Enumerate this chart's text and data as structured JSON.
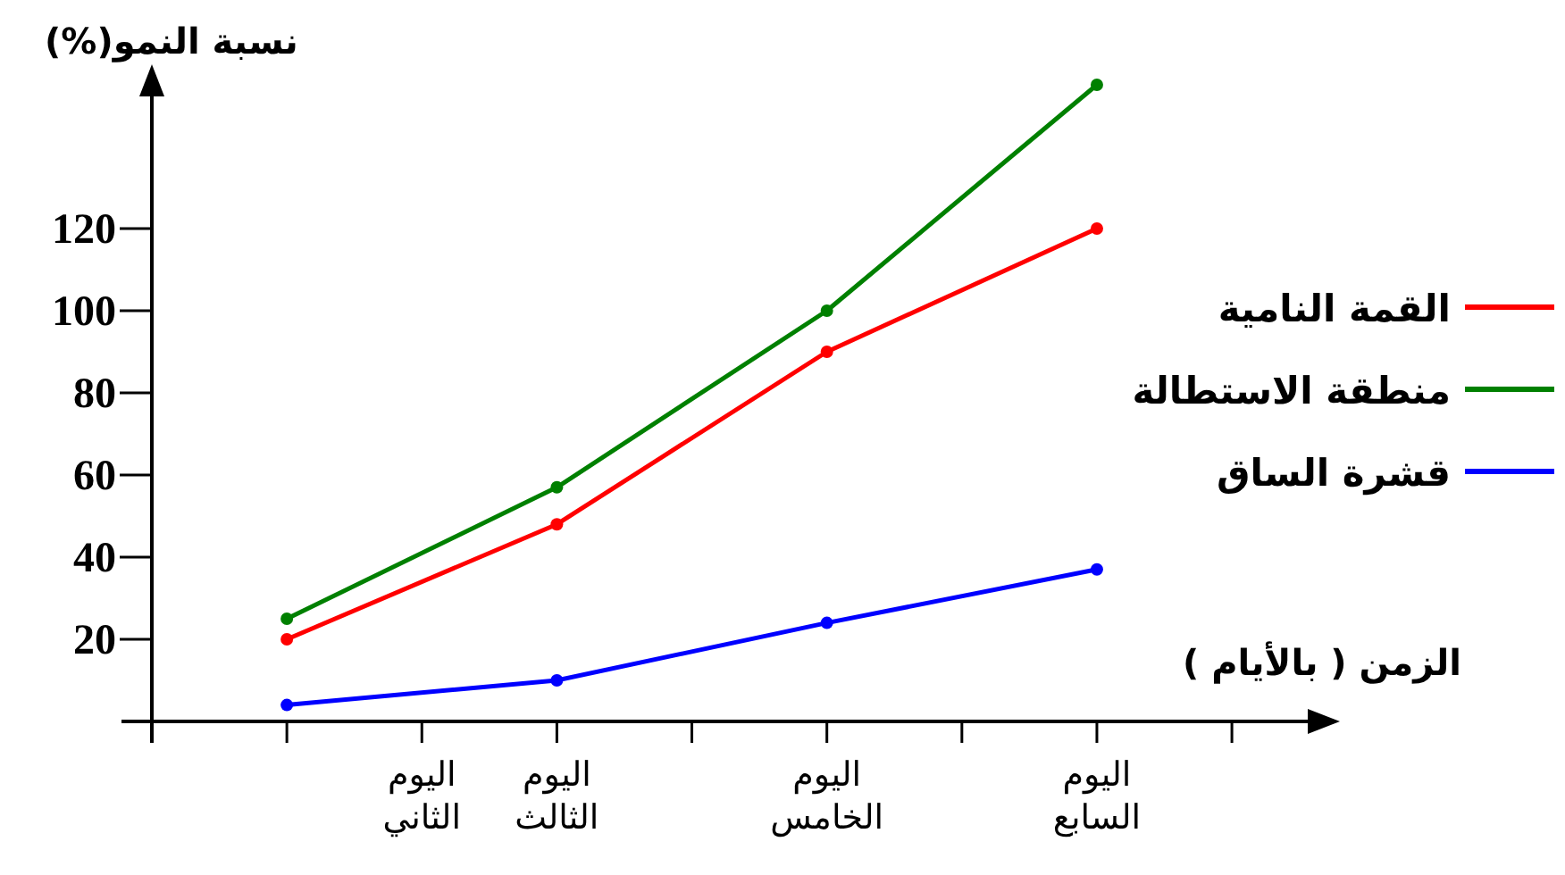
{
  "chart_data": {
    "type": "line",
    "ylabel": "نسبة النمو(%)",
    "xlabel": "الزمن ( بالأيام )",
    "categories": [
      null,
      null,
      "اليوم الثاني",
      "اليوم الثالث",
      null,
      "اليوم الخامس",
      null,
      "اليوم السابع",
      null
    ],
    "ylim": [
      0,
      160
    ],
    "yticks": [
      20,
      40,
      60,
      80,
      100,
      120
    ],
    "marker": "circle",
    "line_style": "solid",
    "grid": false,
    "legend": "right",
    "series": [
      {
        "name": "القمة النامية",
        "color": "#ff0000",
        "values": [
          null,
          20,
          null,
          48,
          null,
          90,
          null,
          120,
          null
        ]
      },
      {
        "name": "منطقة الاستطالة",
        "color": "#008000",
        "values": [
          null,
          25,
          null,
          57,
          null,
          100,
          null,
          155,
          null
        ]
      },
      {
        "name": "قشرة الساق",
        "color": "#0000ff",
        "values": [
          null,
          4,
          null,
          10,
          null,
          24,
          null,
          37,
          null
        ]
      }
    ]
  }
}
